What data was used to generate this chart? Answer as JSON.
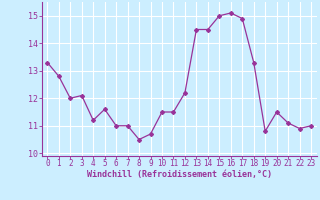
{
  "x": [
    0,
    1,
    2,
    3,
    4,
    5,
    6,
    7,
    8,
    9,
    10,
    11,
    12,
    13,
    14,
    15,
    16,
    17,
    18,
    19,
    20,
    21,
    22,
    23
  ],
  "y": [
    13.3,
    12.8,
    12.0,
    12.1,
    11.2,
    11.6,
    11.0,
    11.0,
    10.5,
    10.7,
    11.5,
    11.5,
    12.2,
    14.5,
    14.5,
    15.0,
    15.1,
    14.9,
    13.3,
    10.8,
    11.5,
    11.1,
    10.9,
    11.0
  ],
  "line_color": "#993399",
  "marker": "D",
  "marker_size": 2,
  "bg_color": "#cceeff",
  "grid_color": "#aaddcc",
  "xlabel": "Windchill (Refroidissement éolien,°C)",
  "xlabel_color": "#993399",
  "tick_color": "#993399",
  "label_color": "#993399",
  "ylim": [
    9.9,
    15.5
  ],
  "yticks": [
    10,
    11,
    12,
    13,
    14,
    15
  ],
  "xlim": [
    -0.5,
    23.5
  ],
  "xticks": [
    0,
    1,
    2,
    3,
    4,
    5,
    6,
    7,
    8,
    9,
    10,
    11,
    12,
    13,
    14,
    15,
    16,
    17,
    18,
    19,
    20,
    21,
    22,
    23
  ],
  "tick_fontsize": 5.5,
  "xlabel_fontsize": 6.0
}
